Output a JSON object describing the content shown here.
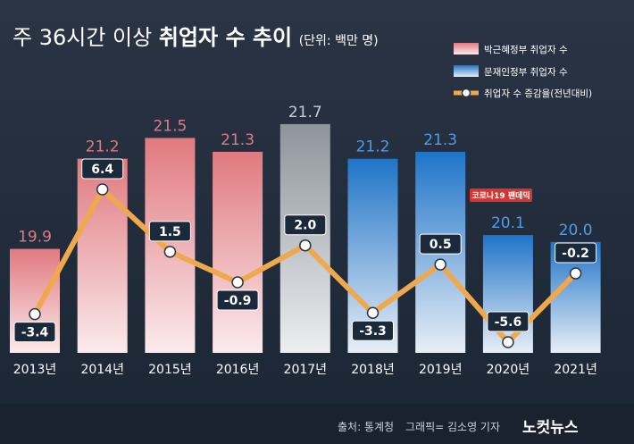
{
  "title": {
    "prefix": "주 36시간 이상",
    "bold": "취업자 수 추이",
    "unit": "(단위: 백만 명)"
  },
  "legend": {
    "park": "박근혜정부 취업자 수",
    "moon": "문재인정부 취업자 수",
    "rate": "취업자 수 증감율(전년대비)"
  },
  "annotation": "코로나19 팬데믹",
  "footer": {
    "source": "출처: 통계청",
    "credit": "그래픽= 김소영 기자",
    "logo": "노컷뉴스"
  },
  "colors": {
    "park_bar": "#e07a80",
    "moon_bar": "#1f74c8",
    "neutral_bar": "#8e949c",
    "line": "#f0a84c",
    "label_box": "#1b2a3b",
    "annotation_bg": "#d9342f"
  },
  "chart_data": {
    "type": "bar",
    "categories": [
      "2013년",
      "2014년",
      "2015년",
      "2016년",
      "2017년",
      "2018년",
      "2019년",
      "2020년",
      "2021년"
    ],
    "series": [
      {
        "name": "취업자 수",
        "values": [
          19.9,
          21.2,
          21.5,
          21.3,
          21.7,
          21.2,
          21.3,
          20.1,
          20.0
        ],
        "labels": [
          "19.9",
          "21.2",
          "21.5",
          "21.3",
          "21.7",
          "21.2",
          "21.3",
          "20.1",
          "20.0"
        ],
        "groups": [
          "park",
          "park",
          "park",
          "park",
          "neutral",
          "moon",
          "moon",
          "moon",
          "moon"
        ]
      },
      {
        "name": "취업자 수 증감율(전년대비)",
        "type": "line",
        "values": [
          -3.4,
          6.4,
          1.5,
          -0.9,
          2.0,
          -3.3,
          0.5,
          -5.6,
          -0.2
        ],
        "labels": [
          "-3.4",
          "6.4",
          "1.5",
          "-0.9",
          "2.0",
          "-3.3",
          "0.5",
          "-5.6",
          "-0.2"
        ]
      }
    ],
    "ylabel": "",
    "xlabel": "",
    "grid": false,
    "legend_position": "top-right"
  }
}
